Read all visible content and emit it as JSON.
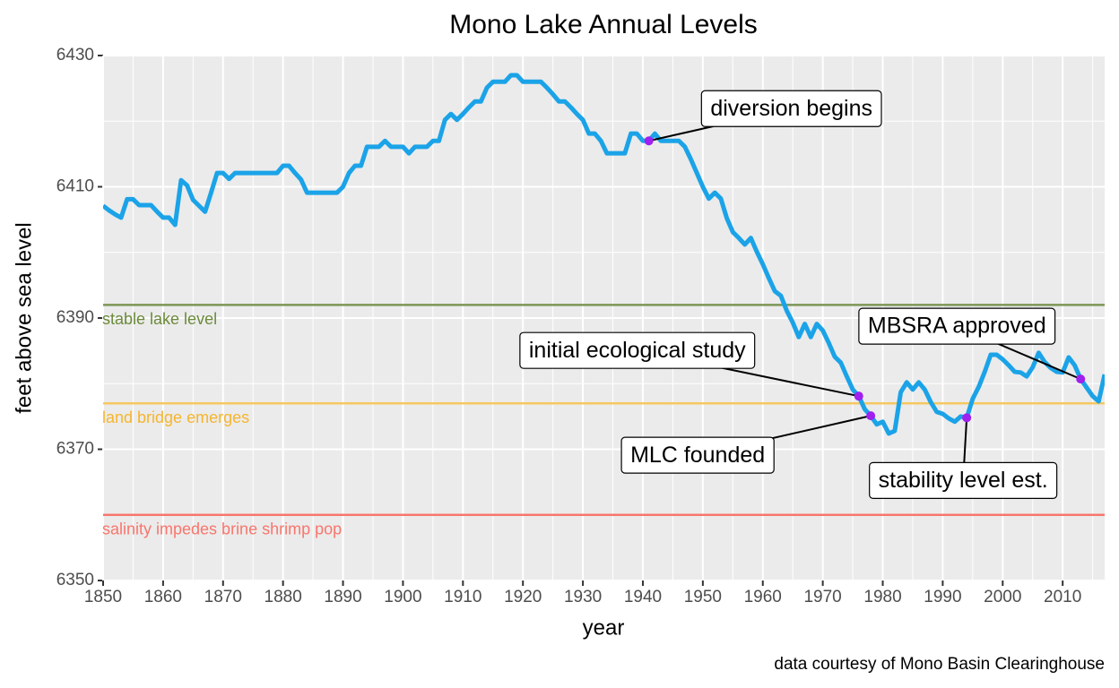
{
  "chart_data": {
    "type": "line",
    "title": "Mono Lake Annual Levels",
    "x_label": "year",
    "y_label": "feet above sea level",
    "caption": "data courtesy of Mono Basin Clearinghouse",
    "x": [
      1850,
      1851,
      1852,
      1853,
      1854,
      1855,
      1856,
      1857,
      1858,
      1859,
      1860,
      1861,
      1862,
      1863,
      1864,
      1865,
      1866,
      1867,
      1868,
      1869,
      1870,
      1871,
      1872,
      1873,
      1874,
      1875,
      1876,
      1877,
      1878,
      1879,
      1880,
      1881,
      1882,
      1883,
      1884,
      1885,
      1886,
      1887,
      1888,
      1889,
      1890,
      1891,
      1892,
      1893,
      1894,
      1895,
      1896,
      1897,
      1898,
      1899,
      1900,
      1901,
      1902,
      1903,
      1904,
      1905,
      1906,
      1907,
      1908,
      1909,
      1910,
      1911,
      1912,
      1913,
      1914,
      1915,
      1916,
      1917,
      1918,
      1919,
      1920,
      1921,
      1922,
      1923,
      1924,
      1925,
      1926,
      1927,
      1928,
      1929,
      1930,
      1931,
      1932,
      1933,
      1934,
      1935,
      1936,
      1937,
      1938,
      1939,
      1940,
      1941,
      1942,
      1943,
      1944,
      1945,
      1946,
      1947,
      1948,
      1949,
      1950,
      1951,
      1952,
      1953,
      1954,
      1955,
      1956,
      1957,
      1958,
      1959,
      1960,
      1961,
      1962,
      1963,
      1964,
      1965,
      1966,
      1967,
      1968,
      1969,
      1970,
      1971,
      1972,
      1973,
      1974,
      1975,
      1976,
      1977,
      1978,
      1979,
      1980,
      1981,
      1982,
      1983,
      1984,
      1985,
      1986,
      1987,
      1988,
      1989,
      1990,
      1991,
      1992,
      1993,
      1994,
      1995,
      1996,
      1997,
      1998,
      1999,
      2000,
      2001,
      2002,
      2003,
      2004,
      2005,
      2006,
      2007,
      2008,
      2009,
      2010,
      2011,
      2012,
      2013,
      2014,
      2015,
      2016,
      2017
    ],
    "values": [
      6407.1,
      6406.4,
      6405.8,
      6405.3,
      6408.1,
      6408.1,
      6407.2,
      6407.2,
      6407.2,
      6406.2,
      6405.3,
      6405.3,
      6404.2,
      6411.0,
      6410.2,
      6408.0,
      6407.1,
      6406.2,
      6409.1,
      6412.1,
      6412.1,
      6411.2,
      6412.1,
      6412.1,
      6412.1,
      6412.1,
      6412.1,
      6412.1,
      6412.1,
      6412.1,
      6413.2,
      6413.2,
      6412.1,
      6411.1,
      6409.1,
      6409.1,
      6409.1,
      6409.1,
      6409.1,
      6409.1,
      6410.0,
      6412.1,
      6413.2,
      6413.2,
      6416.1,
      6416.1,
      6416.1,
      6417.0,
      6416.1,
      6416.1,
      6416.1,
      6415.1,
      6416.1,
      6416.1,
      6416.1,
      6417.0,
      6417.0,
      6420.2,
      6421.1,
      6420.2,
      6421.1,
      6422.1,
      6423.0,
      6423.0,
      6425.1,
      6426.0,
      6426.0,
      6426.0,
      6427.0,
      6427.0,
      6426.0,
      6426.0,
      6426.0,
      6426.0,
      6425.1,
      6424.1,
      6423.0,
      6423.0,
      6422.1,
      6421.1,
      6420.2,
      6418.1,
      6418.1,
      6417.0,
      6415.1,
      6415.1,
      6415.1,
      6415.1,
      6418.1,
      6418.1,
      6417.0,
      6417.0,
      6418.1,
      6417.0,
      6417.0,
      6417.0,
      6417.0,
      6416.1,
      6414.2,
      6412.1,
      6410.0,
      6408.2,
      6409.1,
      6408.2,
      6405.2,
      6403.1,
      6402.2,
      6401.2,
      6402.2,
      6400.1,
      6398.2,
      6396.1,
      6394.1,
      6393.4,
      6391.1,
      6389.3,
      6387.1,
      6389.1,
      6387.1,
      6389.1,
      6388.1,
      6386.2,
      6384.1,
      6383.2,
      6381.1,
      6379.1,
      6378.1,
      6376.1,
      6375.1,
      6373.8,
      6374.2,
      6372.4,
      6372.8,
      6378.7,
      6380.2,
      6379.1,
      6380.2,
      6379.1,
      6377.2,
      6375.7,
      6375.4,
      6374.7,
      6374.2,
      6375.0,
      6374.8,
      6377.7,
      6379.5,
      6381.8,
      6384.4,
      6384.4,
      6383.7,
      6382.8,
      6381.8,
      6381.7,
      6381.1,
      6382.5,
      6384.7,
      6383.3,
      6382.4,
      6381.8,
      6381.7,
      6384.0,
      6382.8,
      6380.7,
      6379.4,
      6378.1,
      6377.3,
      6381.4
    ],
    "color": "#1ba3e8",
    "point_color": "#a020f0",
    "xlim": [
      1850,
      2017
    ],
    "ylim": [
      6350,
      6430
    ],
    "xticks": [
      1850,
      1860,
      1870,
      1880,
      1890,
      1900,
      1910,
      1920,
      1930,
      1940,
      1950,
      1960,
      1970,
      1980,
      1990,
      2000,
      2010
    ],
    "yticks": [
      6350,
      6370,
      6390,
      6410,
      6430
    ],
    "grid": true,
    "reference_lines": [
      {
        "label": "stable lake level",
        "value": 6392,
        "color": "#7d9656",
        "text_color": "#6b8a3a"
      },
      {
        "label": "land bridge emerges",
        "value": 6377,
        "color": "#f6c860",
        "text_color": "#f5b52e"
      },
      {
        "label": "salinity impedes brine shrimp pop",
        "value": 6360,
        "color": "#f8766d",
        "text_color": "#f8766d"
      }
    ],
    "annotations": [
      {
        "label": "diversion begins",
        "x": 1941,
        "y": 6417.0
      },
      {
        "label": "initial ecological study",
        "x": 1976,
        "y": 6378.1
      },
      {
        "label": "MLC founded",
        "x": 1978,
        "y": 6375.1
      },
      {
        "label": "stability level est.",
        "x": 1994,
        "y": 6374.8
      },
      {
        "label": "MBSRA approved",
        "x": 2013,
        "y": 6380.7
      }
    ]
  }
}
